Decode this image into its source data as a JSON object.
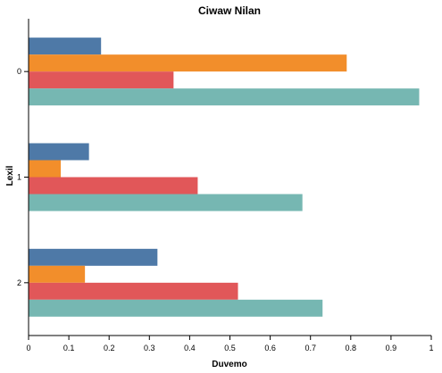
{
  "chart_data": {
    "type": "bar",
    "orientation": "horizontal",
    "title": "Ciwaw Nilan",
    "xlabel": "Duvemo",
    "ylabel": "Lexil",
    "categories": [
      "0",
      "1",
      "2"
    ],
    "xlim": [
      0,
      1
    ],
    "x_ticks": [
      "0",
      "0.1",
      "0.2",
      "0.3",
      "0.4",
      "0.5",
      "0.6",
      "0.7",
      "0.8",
      "0.9",
      "1"
    ],
    "grid": false,
    "legend": "none",
    "series": [
      {
        "color": "#4e79a7",
        "values": [
          0.18,
          0.15,
          0.32
        ]
      },
      {
        "color": "#f28e2b",
        "values": [
          0.79,
          0.08,
          0.14
        ]
      },
      {
        "color": "#e15759",
        "values": [
          0.36,
          0.42,
          0.52
        ]
      },
      {
        "color": "#76b7b2",
        "values": [
          0.97,
          0.68,
          0.73
        ]
      }
    ]
  }
}
